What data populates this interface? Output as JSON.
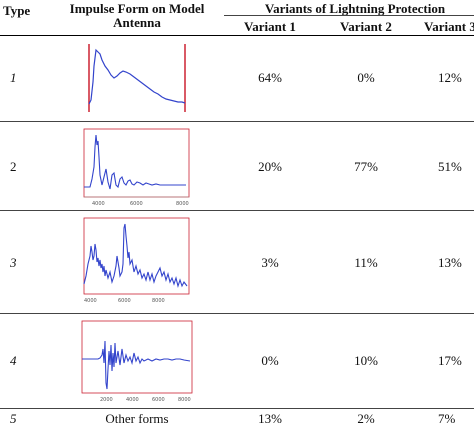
{
  "table": {
    "headers": {
      "type": "Type",
      "impulse_line1": "Impulse Form on Model",
      "impulse_line2": "Antenna",
      "variants_group": "Variants of Lightning Protection",
      "variant1": "Variant 1",
      "variant2": "Variant 2",
      "variant3": "Variant 3"
    },
    "rows": [
      {
        "type": "1",
        "v1": "64%",
        "v2": "0%",
        "v3": "12%"
      },
      {
        "type": "2",
        "v1": "20%",
        "v2": "77%",
        "v3": "51%"
      },
      {
        "type": "3",
        "v1": "3%",
        "v2": "11%",
        "v3": "13%"
      },
      {
        "type": "4",
        "v1": "0%",
        "v2": "10%",
        "v3": "17%"
      },
      {
        "type": "5",
        "form": "Other forms",
        "v1": "13%",
        "v2": "2%",
        "v3": "7%"
      }
    ],
    "thumb_axis_labels": {
      "row2": [
        "4000",
        "6000",
        "8000"
      ],
      "row3": [
        "4000",
        "6000",
        "8000"
      ],
      "row4": [
        "2000",
        "4000",
        "6000",
        "8000"
      ]
    }
  },
  "colors": {
    "waveform": "#3344cc",
    "boundary": "#cc2233",
    "rule": "#000000"
  }
}
